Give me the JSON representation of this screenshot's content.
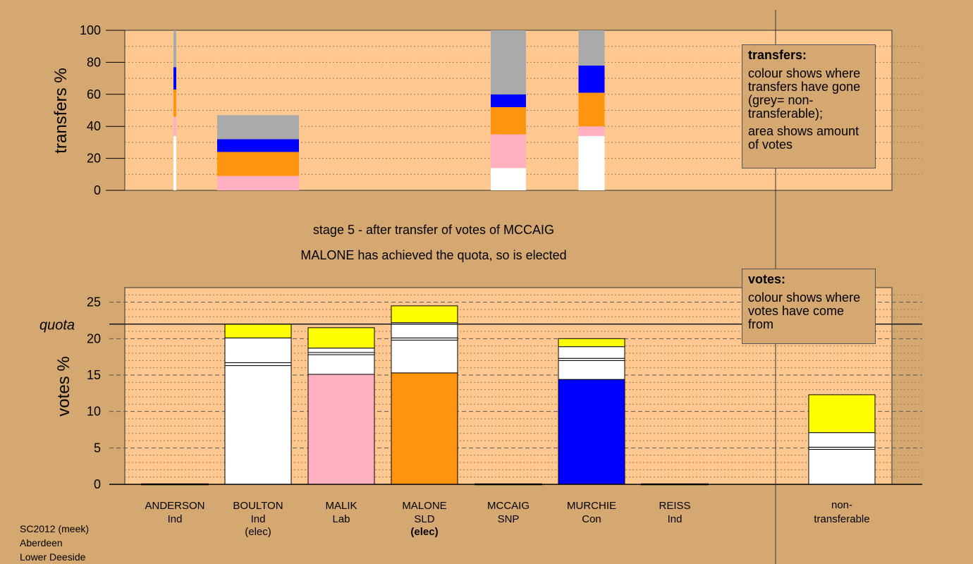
{
  "chart_data": [
    {
      "type": "bar",
      "variant": "stacked-variable-width",
      "ylabel": "transfers %",
      "ylim": [
        0,
        100
      ],
      "yticks": [
        0,
        20,
        40,
        60,
        80,
        100
      ],
      "grid": true,
      "segment_order": [
        "white",
        "pink",
        "orange",
        "blue",
        "grey"
      ],
      "colors": {
        "white": "#FFFFFF",
        "pink": "#FFB0C0",
        "orange": "#FF9410",
        "blue": "#0000FF",
        "grey": "#AAAAAA"
      },
      "bars": [
        {
          "column": "ANDERSON",
          "segments": [
            34,
            12,
            17,
            14,
            23
          ]
        },
        {
          "column": "BOULTON",
          "segments": [
            0,
            9,
            15,
            8,
            15
          ]
        },
        {
          "column": "MCCAIG",
          "segments": [
            14,
            21,
            17,
            8,
            40
          ]
        },
        {
          "column": "MURCHIE",
          "segments": [
            34,
            6,
            21,
            17,
            22
          ]
        }
      ]
    },
    {
      "type": "bar",
      "variant": "stacked",
      "ylabel": "votes %",
      "ylim": [
        0,
        27
      ],
      "yticks": [
        0,
        5,
        10,
        15,
        20,
        25
      ],
      "quota": 22,
      "quota_label": "quota",
      "colors": {
        "base": "#FFFFFF",
        "yellow": "#FFFF00",
        "pink": "#FFB0C0",
        "orange": "#FF9410",
        "blue": "#0000FF"
      },
      "categories": [
        "ANDERSON",
        "BOULTON",
        "MALIK",
        "MALONE",
        "MCCAIG",
        "MURCHIE",
        "REISS",
        "non-transferable"
      ],
      "bars": [
        {
          "segments": []
        },
        {
          "segments": [
            {
              "v": 16.3,
              "c": "base"
            },
            {
              "v": 0.4,
              "c": "base"
            },
            {
              "v": 3.4,
              "c": "base"
            },
            {
              "v": 1.9,
              "c": "yellow"
            }
          ]
        },
        {
          "segments": [
            {
              "v": 15.1,
              "c": "pink"
            },
            {
              "v": 2.7,
              "c": "base"
            },
            {
              "v": 0.3,
              "c": "base"
            },
            {
              "v": 0.6,
              "c": "base"
            },
            {
              "v": 2.8,
              "c": "yellow"
            }
          ]
        },
        {
          "segments": [
            {
              "v": 15.3,
              "c": "orange"
            },
            {
              "v": 4.5,
              "c": "base"
            },
            {
              "v": 0.3,
              "c": "base"
            },
            {
              "v": 2.1,
              "c": "base"
            },
            {
              "v": 2.3,
              "c": "yellow"
            }
          ]
        },
        {
          "segments": []
        },
        {
          "segments": [
            {
              "v": 14.4,
              "c": "blue"
            },
            {
              "v": 2.6,
              "c": "base"
            },
            {
              "v": 0.3,
              "c": "base"
            },
            {
              "v": 1.6,
              "c": "base"
            },
            {
              "v": 1.1,
              "c": "yellow"
            }
          ]
        },
        {
          "segments": []
        },
        {
          "segments": [
            {
              "v": 4.8,
              "c": "base"
            },
            {
              "v": 0.3,
              "c": "base"
            },
            {
              "v": 2.0,
              "c": "base"
            },
            {
              "v": 5.2,
              "c": "yellow"
            }
          ]
        }
      ]
    }
  ],
  "candidates": [
    {
      "name": "ANDERSON",
      "party": "Ind",
      "note": ""
    },
    {
      "name": "BOULTON",
      "party": "Ind",
      "note": "(elec)"
    },
    {
      "name": "MALIK",
      "party": "Lab",
      "note": ""
    },
    {
      "name": "MALONE",
      "party": "SLD",
      "note": "(elec)"
    },
    {
      "name": "MCCAIG",
      "party": "SNP",
      "note": ""
    },
    {
      "name": "MURCHIE",
      "party": "Con",
      "note": ""
    },
    {
      "name": "REISS",
      "party": "Ind",
      "note": ""
    }
  ],
  "nontransferable": {
    "line1": "non-",
    "line2": "transferable"
  },
  "stage_text": "stage 5 - after transfer of votes of MCCAIG",
  "elected_text": "MALONE has achieved the quota, so is elected",
  "legend_transfers": {
    "title": "transfers:",
    "text1": "colour shows where transfers have gone (grey= non-transferable);",
    "text2": "area shows amount of votes"
  },
  "legend_votes": {
    "title": "votes:",
    "text1": "colour shows where votes have come from"
  },
  "footer": {
    "line1": "SC2012 (meek)",
    "line2": "Aberdeen",
    "line3": "Lower Deeside"
  }
}
